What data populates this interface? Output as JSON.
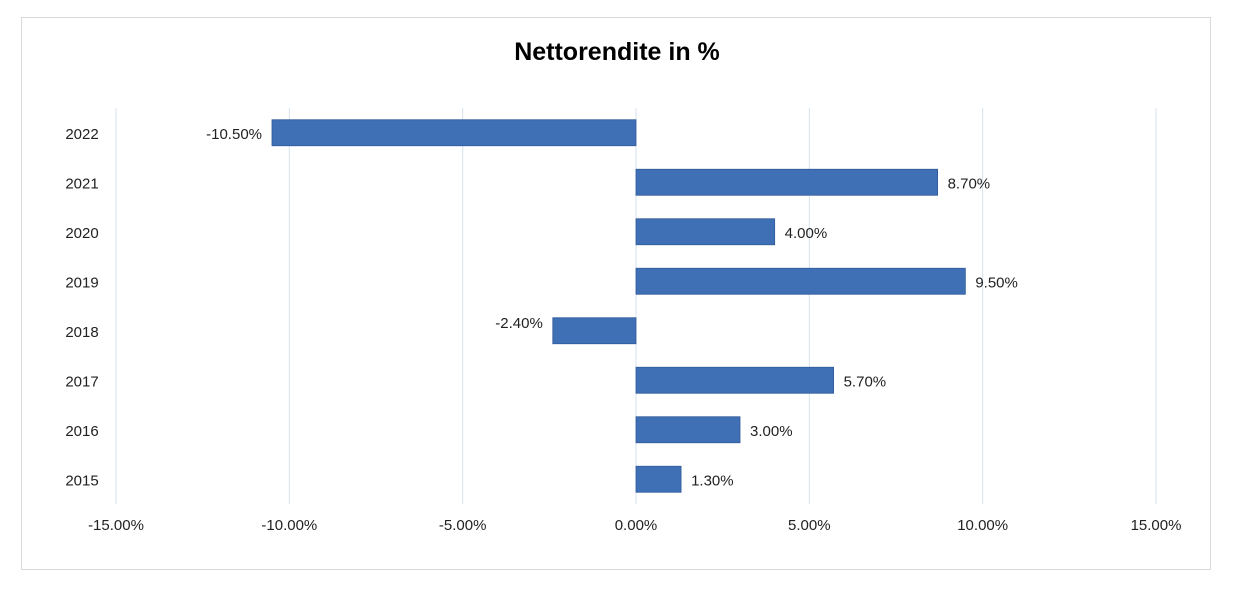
{
  "chart_data": {
    "type": "bar",
    "orientation": "horizontal",
    "title": "Nettorendite in %",
    "xlabel": "",
    "ylabel": "",
    "categories": [
      "2022",
      "2021",
      "2020",
      "2019",
      "2018",
      "2017",
      "2016",
      "2015"
    ],
    "values": [
      -10.5,
      8.7,
      4.0,
      9.5,
      -2.4,
      5.7,
      3.0,
      1.3
    ],
    "data_labels": [
      "-10.50%",
      "8.70%",
      "4.00%",
      "9.50%",
      "-2.40%",
      "5.70%",
      "3.00%",
      "1.30%"
    ],
    "xlim": [
      -15,
      15
    ],
    "x_ticks": [
      -15,
      -10,
      -5,
      0,
      5,
      10,
      15
    ],
    "x_tick_labels": [
      "-15.00%",
      "-10.00%",
      "-5.00%",
      "0.00%",
      "5.00%",
      "10.00%",
      "15.00%"
    ],
    "grid": true,
    "legend": "none",
    "colors": {
      "bar": "#3f6fb5",
      "bar_edge": "#2f5a98",
      "grid": "#d6e2ee",
      "frame": "#d9d9d9"
    }
  }
}
